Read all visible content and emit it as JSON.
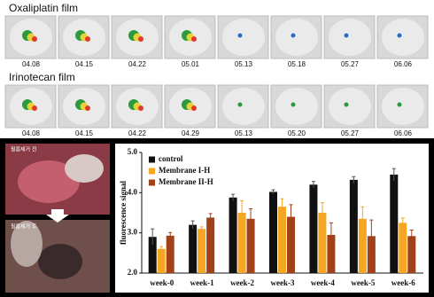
{
  "panels": {
    "oxaliplatin": {
      "title": "Oxaliplatin film",
      "dates": [
        "04.08",
        "04.15",
        "04.22",
        "05.01",
        "05.13",
        "05.18",
        "05.27",
        "06.06"
      ]
    },
    "irinotecan": {
      "title": "Irinotecan film",
      "dates": [
        "04.08",
        "04.15",
        "04.22",
        "04.29",
        "05.13",
        "05.20",
        "05.27",
        "06.06"
      ]
    },
    "photos": {
      "before": "필름제거 전",
      "after": "필름제거 후"
    }
  },
  "chart_data": {
    "type": "bar",
    "y_label": "fluorescence signal",
    "categories": [
      "week-0",
      "week-1",
      "week-2",
      "week-3",
      "week-4",
      "week-5",
      "week-6"
    ],
    "series": [
      {
        "name": "control",
        "color": "#111111",
        "values": [
          2.9,
          3.2,
          3.88,
          4.02,
          4.2,
          4.32,
          4.45
        ],
        "errors": [
          0.2,
          0.1,
          0.08,
          0.05,
          0.08,
          0.08,
          0.15
        ]
      },
      {
        "name": "Membrane I-H",
        "color": "#f5a623",
        "values": [
          2.6,
          3.1,
          3.5,
          3.65,
          3.5,
          3.35,
          3.25
        ],
        "errors": [
          0.06,
          0.05,
          0.3,
          0.2,
          0.25,
          0.3,
          0.12
        ]
      },
      {
        "name": "Membrane II-H",
        "color": "#a0411a",
        "values": [
          2.93,
          3.38,
          3.35,
          3.4,
          2.95,
          2.92,
          2.92
        ],
        "errors": [
          0.08,
          0.1,
          0.25,
          0.3,
          0.3,
          0.4,
          0.15
        ]
      }
    ],
    "ylim": [
      2,
      5
    ],
    "yticks": [
      {
        "value": 2,
        "label": "2.0"
      },
      {
        "value": 3,
        "label": "3.0"
      },
      {
        "value": 4,
        "label": "4.0"
      },
      {
        "value": 5,
        "label": "5.0"
      }
    ],
    "legend": "upper-left"
  }
}
